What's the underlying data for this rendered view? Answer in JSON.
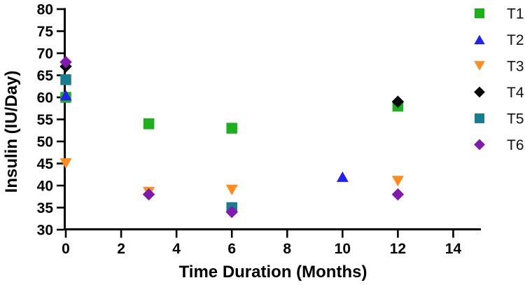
{
  "chart_data": {
    "type": "scatter",
    "title": "",
    "xlabel": "Time Duration (Months)",
    "ylabel": "Insulin (IU/Day)",
    "xlim": [
      0,
      15
    ],
    "ylim": [
      30,
      80
    ],
    "x_ticks": [
      0,
      2,
      4,
      6,
      8,
      10,
      12,
      14
    ],
    "y_ticks": [
      30,
      35,
      40,
      45,
      50,
      55,
      60,
      65,
      70,
      75,
      80
    ],
    "grid": false,
    "legend_position": "right",
    "axis_color": "#000000",
    "series": [
      {
        "name": "T1",
        "marker": "square",
        "color": "#1cb11c",
        "points": [
          [
            0,
            60
          ],
          [
            3,
            54
          ],
          [
            6,
            53
          ],
          [
            12,
            58
          ]
        ]
      },
      {
        "name": "T2",
        "marker": "triangle-up",
        "color": "#2222f0",
        "points": [
          [
            0,
            60.5
          ],
          [
            10,
            42
          ]
        ]
      },
      {
        "name": "T3",
        "marker": "triangle-down",
        "color": "#ff8c1d",
        "points": [
          [
            0,
            45
          ],
          [
            3,
            38.5
          ],
          [
            6,
            39
          ],
          [
            12,
            41
          ]
        ]
      },
      {
        "name": "T4",
        "marker": "diamond",
        "color": "#0a0a0a",
        "points": [
          [
            0,
            67
          ],
          [
            12,
            59
          ]
        ]
      },
      {
        "name": "T5",
        "marker": "square",
        "color": "#177d8f",
        "points": [
          [
            0,
            64
          ],
          [
            6,
            35
          ]
        ]
      },
      {
        "name": "T6",
        "marker": "diamond",
        "color": "#8019ae",
        "points": [
          [
            0,
            68
          ],
          [
            3,
            38
          ],
          [
            6,
            34
          ],
          [
            12,
            38
          ]
        ]
      }
    ]
  }
}
